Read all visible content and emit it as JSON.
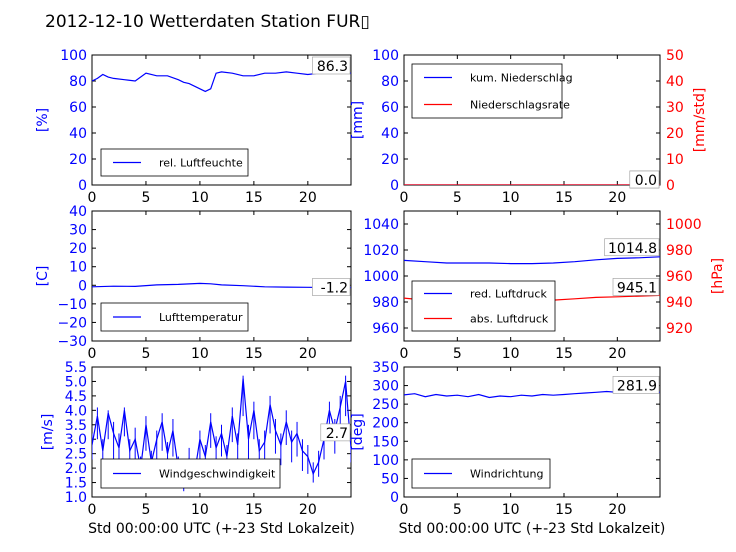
{
  "title": "2012-12-10 Wetterdaten Station FUR▯",
  "colors": {
    "blue": "#0000ff",
    "red": "#ff0000",
    "black": "#000000"
  },
  "chart_data": [
    {
      "id": "humidity",
      "type": "line",
      "ylabel": "[%]",
      "ylim": [
        0,
        100
      ],
      "yticks": [
        "0",
        "20",
        "40",
        "60",
        "80",
        "100"
      ],
      "xlim": [
        0,
        24
      ],
      "xticks": [
        "0",
        "5",
        "10",
        "15",
        "20"
      ],
      "series": [
        {
          "name": "rel. Luftfeuchte",
          "color": "#0000ff",
          "x": [
            0,
            0.5,
            1,
            1.5,
            2,
            3,
            4,
            5,
            6,
            7,
            8,
            8.5,
            9,
            9.5,
            10,
            10.5,
            11,
            11.5,
            12,
            13,
            14,
            15,
            16,
            17,
            18,
            19,
            20,
            21,
            22,
            23,
            24
          ],
          "y": [
            80,
            82,
            85,
            83,
            82,
            81,
            80,
            86,
            84,
            84,
            81,
            79,
            78,
            76,
            74,
            72,
            74,
            86,
            87,
            86,
            84,
            84,
            86,
            86,
            87,
            86,
            85,
            86,
            86,
            87,
            86
          ]
        }
      ],
      "readout": "86.3",
      "legend_position": "lower-left"
    },
    {
      "id": "precip",
      "type": "line",
      "ylabel": "[mm]",
      "ylim": [
        0,
        100
      ],
      "yticks": [
        "0",
        "20",
        "40",
        "60",
        "80",
        "100"
      ],
      "y2label": "[mm/std]",
      "y2lim": [
        0,
        50
      ],
      "y2ticks": [
        "0",
        "10",
        "20",
        "30",
        "40",
        "50"
      ],
      "xlim": [
        0,
        24
      ],
      "xticks": [
        "0",
        "5",
        "10",
        "15",
        "20"
      ],
      "series": [
        {
          "name": "kum. Niederschlag",
          "color": "#0000ff",
          "x": [
            0,
            24
          ],
          "y": [
            0,
            0
          ]
        },
        {
          "name": "Niederschlagsrate",
          "color": "#ff0000",
          "axis": "right",
          "x": [
            0,
            24
          ],
          "y": [
            0,
            0
          ]
        }
      ],
      "readout": "0.0",
      "readout2": "0.0",
      "legend_position": "upper-left"
    },
    {
      "id": "temperature",
      "type": "line",
      "ylabel": "[C]",
      "ylim": [
        -30,
        40
      ],
      "yticks": [
        "−30",
        "−20",
        "−10",
        "0",
        "10",
        "20",
        "30",
        "40"
      ],
      "xlim": [
        0,
        24
      ],
      "xticks": [
        "0",
        "5",
        "10",
        "15",
        "20"
      ],
      "series": [
        {
          "name": "Lufttemperatur",
          "color": "#0000ff",
          "x": [
            0,
            2,
            4,
            6,
            8,
            10,
            11,
            12,
            14,
            16,
            18,
            20,
            22,
            24
          ],
          "y": [
            -0.8,
            -0.5,
            -0.6,
            0.2,
            0.5,
            1.0,
            0.8,
            0.2,
            -0.2,
            -0.8,
            -1.0,
            -1.1,
            -1.2,
            -1.2
          ]
        }
      ],
      "readout": "-1.2",
      "legend_position": "lower-left"
    },
    {
      "id": "pressure",
      "type": "line",
      "ylim": [
        950,
        1050
      ],
      "yticks": [
        "960",
        "980",
        "1000",
        "1020",
        "1040"
      ],
      "y2label": "[hPa]",
      "y2lim": [
        910,
        1010
      ],
      "y2ticks": [
        "920",
        "940",
        "960",
        "980",
        "1000"
      ],
      "xlim": [
        0,
        24
      ],
      "xticks": [
        "0",
        "5",
        "10",
        "15",
        "20"
      ],
      "series": [
        {
          "name": "red. Luftdruck",
          "color": "#0000ff",
          "x": [
            0,
            2,
            4,
            6,
            8,
            10,
            12,
            14,
            16,
            18,
            20,
            22,
            24
          ],
          "y": [
            1012,
            1011,
            1010,
            1010,
            1010,
            1009.5,
            1009.5,
            1010,
            1011,
            1012.5,
            1013.5,
            1014,
            1014.8
          ]
        },
        {
          "name": "abs. Luftdruck",
          "color": "#ff0000",
          "axis": "right",
          "x": [
            0,
            2,
            4,
            6,
            8,
            10,
            12,
            14,
            16,
            18,
            20,
            22,
            24
          ],
          "y": [
            943,
            941.5,
            941,
            941,
            941,
            941,
            941,
            941.5,
            942.5,
            943.5,
            944,
            944.5,
            945.1
          ]
        }
      ],
      "readout": "1014.8",
      "readout2": "945.1",
      "legend_position": "lower-left"
    },
    {
      "id": "windspeed",
      "type": "line",
      "ylabel": "[m/s]",
      "ylim": [
        1.0,
        5.5
      ],
      "yticks": [
        "1.0",
        "1.5",
        "2.0",
        "2.5",
        "3.0",
        "3.5",
        "4.0",
        "4.5",
        "5.0",
        "5.5"
      ],
      "xlim": [
        0,
        24
      ],
      "xticks": [
        "0",
        "5",
        "10",
        "15",
        "20"
      ],
      "xlabel": "Std 00:00:00 UTC (+-23 Std Lokalzeit)",
      "series": [
        {
          "name": "Windgeschwindigkeit",
          "color": "#0000ff",
          "x": [
            0,
            0.5,
            1,
            1.5,
            2,
            2.5,
            3,
            3.5,
            4,
            4.5,
            5,
            5.5,
            6,
            6.5,
            7,
            7.5,
            8,
            8.5,
            9,
            9.5,
            10,
            10.5,
            11,
            11.5,
            12,
            12.5,
            13,
            13.5,
            14,
            14.5,
            15,
            15.5,
            16,
            16.5,
            17,
            17.5,
            18,
            18.5,
            19,
            19.5,
            20,
            20.5,
            21,
            21.5,
            22,
            22.5,
            23,
            23.5,
            24
          ],
          "y": [
            2.8,
            3.8,
            2.6,
            3.9,
            3.2,
            2.7,
            4.0,
            2.6,
            3.0,
            2.0,
            3.5,
            2.2,
            3.0,
            3.6,
            2.5,
            3.3,
            2.0,
            1.4,
            2.3,
            1.8,
            3.0,
            2.4,
            3.6,
            2.7,
            3.2,
            2.4,
            3.8,
            2.8,
            5.1,
            3.0,
            4.0,
            2.6,
            2.9,
            4.2,
            3.3,
            2.8,
            3.6,
            2.9,
            3.2,
            2.6,
            2.4,
            1.8,
            2.2,
            3.0,
            4.0,
            3.3,
            4.1,
            5.0,
            2.7
          ],
          "lows": [
            2.3,
            3.0,
            1.9,
            3.0,
            2.2,
            1.9,
            3.1,
            2.0,
            2.2,
            1.6,
            2.6,
            1.6,
            2.2,
            2.6,
            1.8,
            2.4,
            1.5,
            1.2,
            1.6,
            1.5,
            2.2,
            1.9,
            2.7,
            2.0,
            2.4,
            1.8,
            2.9,
            2.1,
            3.8,
            2.3,
            3.0,
            1.8,
            2.2,
            3.2,
            2.5,
            2.1,
            2.8,
            2.2,
            2.4,
            1.9,
            1.8,
            1.5,
            1.7,
            2.3,
            3.0,
            2.5,
            3.2,
            3.8,
            2.2
          ],
          "highs": [
            3.2,
            4.1,
            3.0,
            4.0,
            3.6,
            3.2,
            4.1,
            3.0,
            3.4,
            2.4,
            3.8,
            2.6,
            3.3,
            3.9,
            2.9,
            3.7,
            2.4,
            1.8,
            2.7,
            2.2,
            3.3,
            2.8,
            3.9,
            3.1,
            3.5,
            2.8,
            4.1,
            3.2,
            5.2,
            3.5,
            4.3,
            3.0,
            3.3,
            4.5,
            3.7,
            3.2,
            4.0,
            3.3,
            3.6,
            3.0,
            2.8,
            2.2,
            2.6,
            3.4,
            4.3,
            3.7,
            4.5,
            5.2,
            3.0
          ]
        }
      ],
      "readout": "2.7",
      "legend_position": "lower-left"
    },
    {
      "id": "winddir",
      "type": "line",
      "ylabel": "[deg]",
      "ylim": [
        0,
        350
      ],
      "yticks": [
        "0",
        "50",
        "100",
        "150",
        "200",
        "250",
        "300",
        "350"
      ],
      "xlim": [
        0,
        24
      ],
      "xticks": [
        "0",
        "5",
        "10",
        "15",
        "20"
      ],
      "xlabel": "Std 00:00:00 UTC (+-23 Std Lokalzeit)",
      "series": [
        {
          "name": "Windrichtung",
          "color": "#0000ff",
          "x": [
            0,
            1,
            2,
            3,
            4,
            5,
            6,
            7,
            8,
            9,
            10,
            11,
            12,
            13,
            14,
            15,
            16,
            17,
            18,
            19,
            20,
            21,
            22,
            23,
            24
          ],
          "y": [
            275,
            278,
            270,
            276,
            272,
            274,
            270,
            276,
            268,
            272,
            270,
            274,
            272,
            276,
            274,
            276,
            278,
            280,
            282,
            284,
            282,
            282,
            283,
            282,
            281.9
          ]
        }
      ],
      "readout": "281.9",
      "legend_position": "lower-left"
    }
  ]
}
